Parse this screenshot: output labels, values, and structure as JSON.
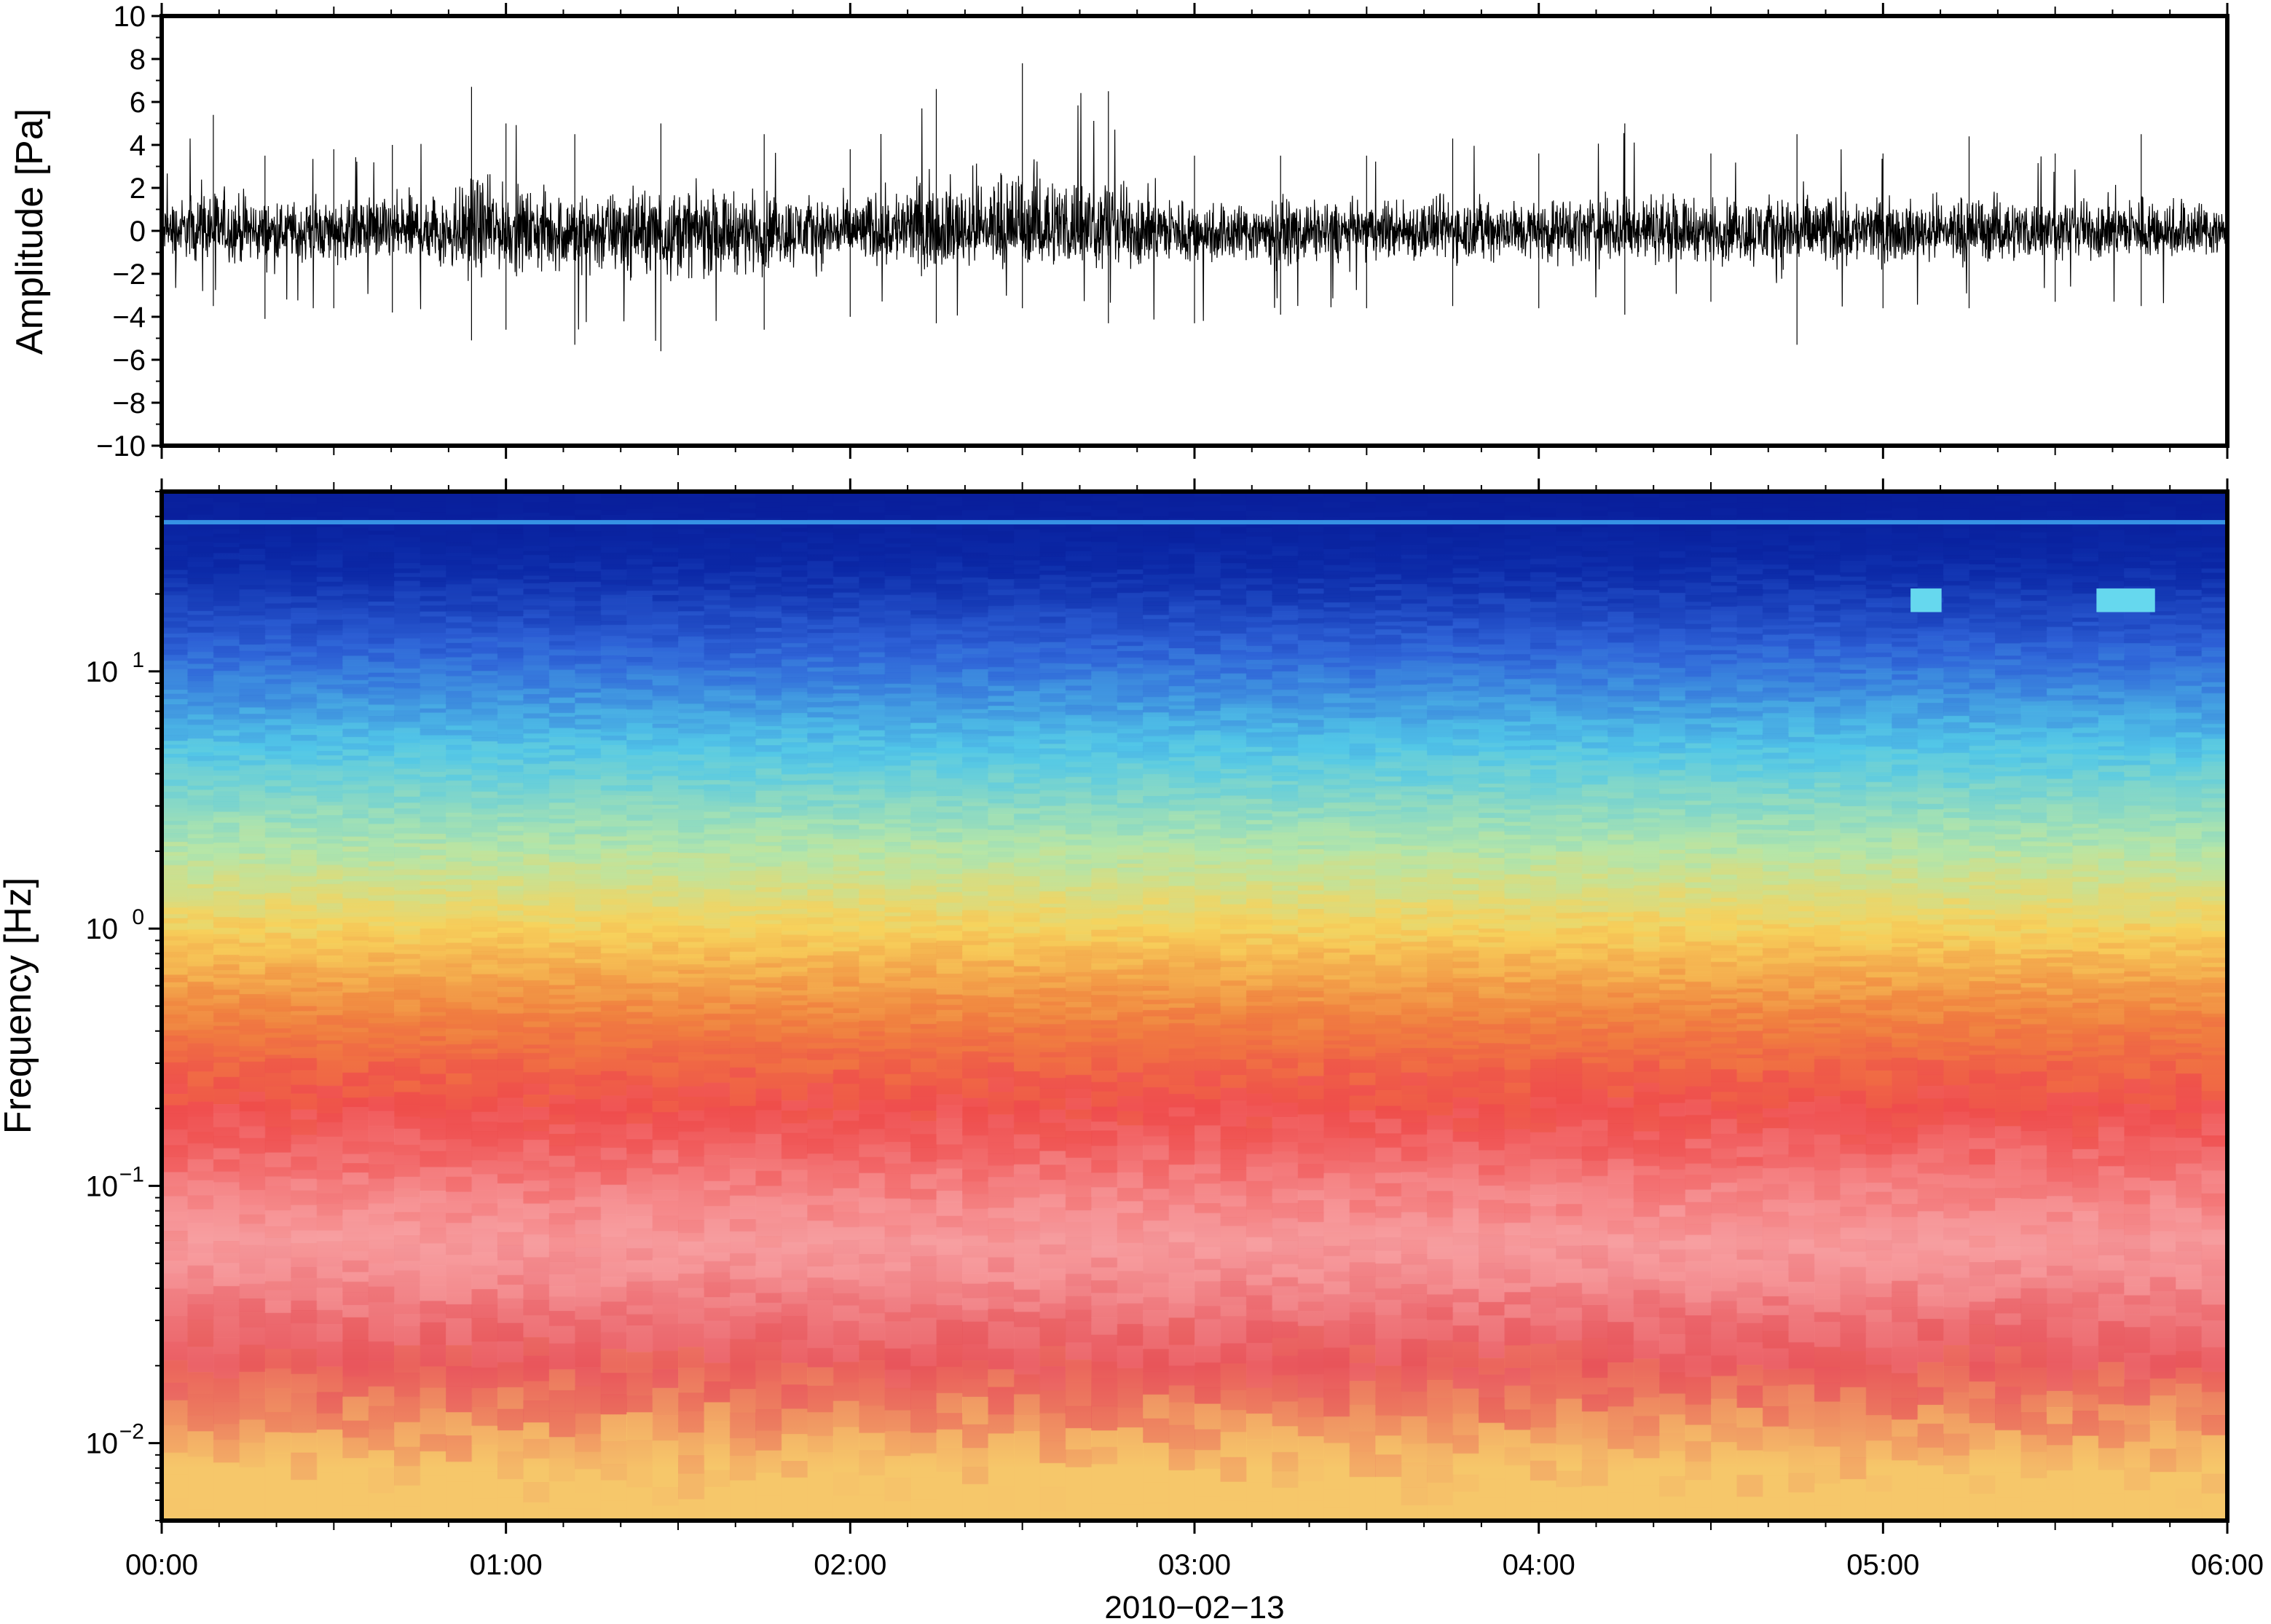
{
  "chart_data": [
    {
      "type": "line",
      "panel": "waveform",
      "xlabel": "",
      "ylabel": "Amplitude [Pa]",
      "ylim": [
        -10,
        10
      ],
      "yticks": [
        -10,
        -8,
        -6,
        -4,
        -2,
        0,
        2,
        4,
        6,
        8,
        10
      ],
      "ytick_labels": [
        "−10",
        "−8",
        "−6",
        "−4",
        "−2",
        "0",
        "2",
        "4",
        "6",
        "8",
        "10"
      ],
      "xlim": [
        "00:00",
        "06:00"
      ],
      "x_unit": "time of day",
      "series": [
        {
          "color": "#000000",
          "description_values": {
            "x_hours": [
              0.0,
              0.15,
              0.3,
              0.5,
              0.67,
              0.9,
              1.0,
              1.2,
              1.45,
              1.75,
              2.0,
              2.25,
              2.5,
              2.75,
              3.0,
              3.25,
              3.5,
              3.75,
              4.0,
              4.25,
              4.5,
              4.75,
              5.0,
              5.25,
              5.5,
              5.75,
              6.0
            ],
            "envelope_max": [
              3.0,
              5.4,
              3.5,
              3.8,
              4.0,
              6.7,
              5.0,
              4.5,
              5.0,
              4.5,
              3.8,
              6.6,
              7.8,
              6.5,
              3.5,
              3.5,
              3.5,
              4.3,
              3.6,
              5.0,
              3.6,
              4.5,
              3.6,
              4.4,
              3.6,
              4.5,
              3.5
            ],
            "envelope_min": [
              -3.0,
              -3.5,
              -4.1,
              -3.6,
              -3.8,
              -5.1,
              -4.6,
              -5.3,
              -5.6,
              -4.6,
              -4.0,
              -4.3,
              -3.6,
              -4.3,
              -4.3,
              -3.9,
              -3.6,
              -3.5,
              -3.6,
              -3.9,
              -3.3,
              -5.3,
              -3.6,
              -3.6,
              -3.3,
              -3.5,
              -3.2
            ]
          }
        }
      ]
    },
    {
      "type": "heatmap",
      "panel": "spectrogram",
      "xlabel": "2010−02−13",
      "ylabel": "Frequency [Hz]",
      "yscale": "log",
      "ylim": [
        0.005,
        50
      ],
      "yticks": [
        0.01,
        0.1,
        1,
        10
      ],
      "ytick_labels": [
        {
          "base": "10",
          "exp": "−2"
        },
        {
          "base": "10",
          "exp": "−1"
        },
        {
          "base": "10",
          "exp": "0"
        },
        {
          "base": "10",
          "exp": "1"
        }
      ],
      "xticks": [
        "00:00",
        "01:00",
        "02:00",
        "03:00",
        "04:00",
        "05:00",
        "06:00"
      ],
      "x_hours": [
        0,
        1,
        2,
        3,
        4,
        5,
        6
      ],
      "colormap_bands": [
        {
          "freq_hz": 45,
          "color": "#0a1f9c"
        },
        {
          "freq_hz": 25,
          "color": "#0c2aa8"
        },
        {
          "freq_hz": 12,
          "color": "#2f63d8"
        },
        {
          "freq_hz": 5,
          "color": "#52c8e8"
        },
        {
          "freq_hz": 2,
          "color": "#b6e6a8"
        },
        {
          "freq_hz": 1,
          "color": "#f7d35c"
        },
        {
          "freq_hz": 0.45,
          "color": "#f0823f"
        },
        {
          "freq_hz": 0.2,
          "color": "#ef4c4c"
        },
        {
          "freq_hz": 0.06,
          "color": "#f7a0a2"
        },
        {
          "freq_hz": 0.02,
          "color": "#e8545a"
        },
        {
          "freq_hz": 0.008,
          "color": "#f6c76a"
        }
      ],
      "features": [
        {
          "kind": "line",
          "freq_hz": 38,
          "color": "#3ea6f0"
        },
        {
          "kind": "patch",
          "x_hours": [
            5.08,
            5.17
          ],
          "freq_hz": [
            17,
            21
          ],
          "color": "#66d8ee"
        },
        {
          "kind": "patch",
          "x_hours": [
            5.62,
            5.79
          ],
          "freq_hz": [
            17,
            21
          ],
          "color": "#66d8ee"
        }
      ]
    }
  ]
}
